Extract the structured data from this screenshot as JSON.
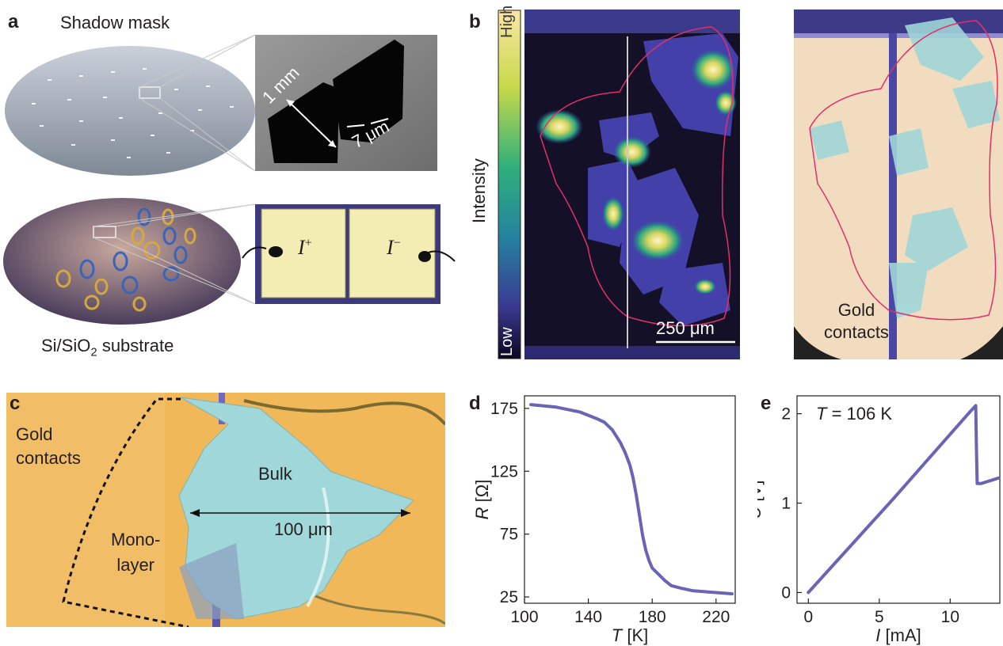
{
  "panels": {
    "a": {
      "letter": "a",
      "title": "Shadow mask",
      "dim_width": "1 mm",
      "dim_gap": "7 μm",
      "substrate_prefix": "Si/SiO",
      "substrate_sub": "2",
      "substrate_suffix": " substrate",
      "contact_plus_base": "I",
      "contact_plus_sup": "+",
      "contact_minus_base": "I",
      "contact_minus_sup": "−"
    },
    "b": {
      "letter": "b",
      "colorbar_label": "Intensity",
      "colorbar_high": "High",
      "colorbar_low": "Low",
      "scalebar": "250 μm",
      "gold_line1": "Gold",
      "gold_line2": "contacts"
    },
    "c": {
      "letter": "c",
      "gold_line1": "Gold",
      "gold_line2": "contacts",
      "mono_line1": "Mono-",
      "mono_line2": "layer",
      "bulk": "Bulk",
      "dimension": "100 μm"
    },
    "d": {
      "letter": "d"
    },
    "e": {
      "letter": "e"
    }
  },
  "colors": {
    "series": "#6b63b5",
    "gold": "#f2dc98",
    "gold_c": "#f0b858",
    "bulk": "#9fd3d6",
    "outline_red": "#e0306a",
    "frame_purple": "#4b3f8f"
  },
  "chart_data": [
    {
      "type": "line",
      "panel": "d",
      "xlabel_italic": "T",
      "xlabel_unit": " [K]",
      "ylabel_italic": "R",
      "ylabel_unit": " [Ω]",
      "xlim": [
        100,
        232
      ],
      "ylim": [
        20,
        185
      ],
      "xticks": [
        100,
        140,
        180,
        220
      ],
      "yticks": [
        25,
        75,
        125,
        175
      ],
      "series": [
        {
          "x": [
            104,
            120,
            135,
            145,
            150,
            155,
            160,
            163,
            166,
            168,
            170,
            172,
            174,
            176,
            178,
            180,
            184,
            188,
            192,
            198,
            205,
            215,
            225,
            230
          ],
          "y": [
            178,
            176,
            172,
            167,
            164,
            158,
            148,
            140,
            130,
            120,
            106,
            90,
            74,
            62,
            54,
            48,
            43,
            38,
            34,
            32,
            30,
            29,
            28,
            27.5
          ]
        }
      ]
    },
    {
      "type": "line",
      "panel": "e",
      "annotation_italic": "T",
      "annotation_rest": " = 106 K",
      "xlabel_italic": "I",
      "xlabel_unit": " [mA]",
      "ylabel_italic": "U",
      "ylabel_unit": " [V]",
      "xlim": [
        -0.8,
        13.5
      ],
      "ylim": [
        -0.12,
        2.2
      ],
      "xticks": [
        0,
        5,
        10
      ],
      "yticks": [
        0,
        1,
        2
      ],
      "series": [
        {
          "x": [
            0,
            2,
            4,
            6,
            8,
            10,
            11.5,
            11.8,
            11.85,
            11.9,
            12.2,
            12.6,
            13.0,
            13.4
          ],
          "y": [
            0.0,
            0.35,
            0.7,
            1.05,
            1.41,
            1.77,
            2.04,
            2.09,
            1.6,
            1.22,
            1.22,
            1.24,
            1.26,
            1.28
          ]
        }
      ]
    }
  ]
}
